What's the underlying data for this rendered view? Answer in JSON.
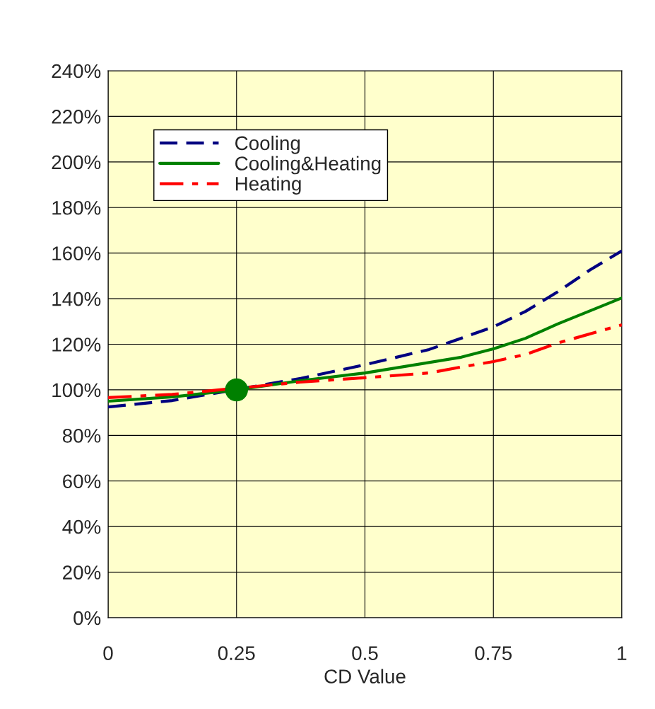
{
  "chart_data": {
    "type": "line",
    "xlabel": "CD Value",
    "xlim": [
      0,
      1
    ],
    "xticks": [
      0,
      0.25,
      0.5,
      0.75,
      1
    ],
    "ylim": [
      0,
      240
    ],
    "yticks": [
      {
        "value": 0,
        "label": "0%"
      },
      {
        "value": 20,
        "label": "20%"
      },
      {
        "value": 40,
        "label": "40%"
      },
      {
        "value": 60,
        "label": "60%"
      },
      {
        "value": 80,
        "label": "80%"
      },
      {
        "value": 100,
        "label": "100%"
      },
      {
        "value": 120,
        "label": "120%"
      },
      {
        "value": 140,
        "label": "140%"
      },
      {
        "value": 160,
        "label": "160%"
      },
      {
        "value": 180,
        "label": "180%"
      },
      {
        "value": 200,
        "label": "200%"
      },
      {
        "value": 220,
        "label": "220%"
      },
      {
        "value": 240,
        "label": "240%"
      }
    ],
    "grid": true,
    "legend": "top left",
    "series": [
      {
        "name": "Cooling",
        "color": "#000080",
        "line_style": "dashed",
        "x": [
          0,
          0.125,
          0.375,
          0.5,
          0.625,
          0.75,
          0.8125,
          0.875,
          0.9375,
          1
        ],
        "values": [
          92.5,
          95.3,
          105,
          111,
          117.7,
          127.6,
          134.4,
          143,
          152.5,
          161
        ]
      },
      {
        "name": "Cooling&Heating",
        "color": "#008000",
        "line_style": "solid",
        "x": [
          0,
          0.125,
          0.25,
          0.375,
          0.5,
          0.6875,
          0.75,
          0.8125,
          0.875,
          1
        ],
        "values": [
          95,
          96.9,
          100,
          104,
          107.4,
          114.3,
          118,
          122.6,
          128.9,
          140.3
        ]
      },
      {
        "name": "Heating",
        "color": "#ff0000",
        "line_style": "dashdot",
        "x": [
          0,
          0.125,
          0.375,
          0.5,
          0.625,
          0.6875,
          0.75,
          0.8125,
          0.875,
          1
        ],
        "values": [
          96.6,
          98,
          103.4,
          105.3,
          107.4,
          110,
          112.4,
          115.5,
          120.5,
          128.5
        ]
      },
      {
        "type": "scatter",
        "color": "#008000",
        "marker": "circle",
        "x": [
          0.25
        ],
        "values": [
          100
        ]
      }
    ]
  }
}
